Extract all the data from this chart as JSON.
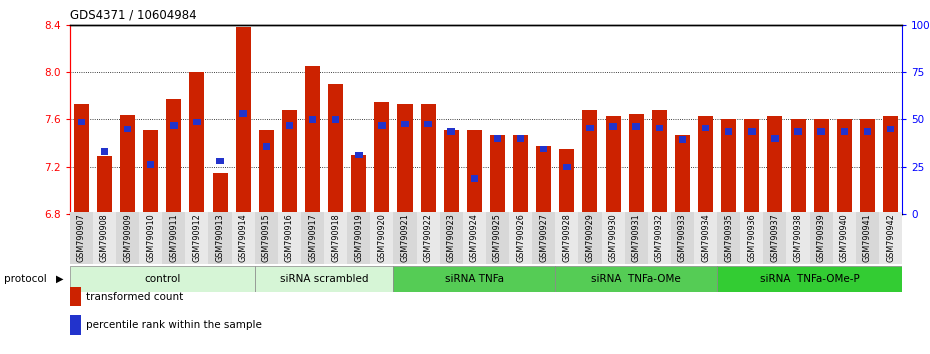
{
  "title": "GDS4371 / 10604984",
  "samples": [
    "GSM790907",
    "GSM790908",
    "GSM790909",
    "GSM790910",
    "GSM790911",
    "GSM790912",
    "GSM790913",
    "GSM790914",
    "GSM790915",
    "GSM790916",
    "GSM790917",
    "GSM790918",
    "GSM790919",
    "GSM790920",
    "GSM790921",
    "GSM790922",
    "GSM790923",
    "GSM790924",
    "GSM790925",
    "GSM790926",
    "GSM790927",
    "GSM790928",
    "GSM790929",
    "GSM790930",
    "GSM790931",
    "GSM790932",
    "GSM790933",
    "GSM790934",
    "GSM790935",
    "GSM790936",
    "GSM790937",
    "GSM790938",
    "GSM790939",
    "GSM790940",
    "GSM790941",
    "GSM790942"
  ],
  "red_values": [
    7.73,
    7.29,
    7.64,
    7.51,
    7.77,
    8.0,
    7.15,
    8.38,
    7.51,
    7.68,
    8.05,
    7.9,
    7.3,
    7.75,
    7.73,
    7.73,
    7.51,
    7.51,
    7.47,
    7.47,
    7.38,
    7.35,
    7.68,
    7.63,
    7.65,
    7.68,
    7.47,
    7.63,
    7.6,
    7.6,
    7.63,
    7.6,
    7.6,
    7.6,
    7.6,
    7.63
  ],
  "blue_values": [
    7.58,
    7.33,
    7.52,
    7.22,
    7.55,
    7.58,
    7.25,
    7.65,
    7.37,
    7.55,
    7.6,
    7.6,
    7.3,
    7.55,
    7.56,
    7.56,
    7.5,
    7.1,
    7.44,
    7.44,
    7.35,
    7.2,
    7.53,
    7.54,
    7.54,
    7.53,
    7.43,
    7.53,
    7.5,
    7.5,
    7.44,
    7.5,
    7.5,
    7.5,
    7.5,
    7.52
  ],
  "groups": [
    {
      "label": "control",
      "start": 0,
      "end": 8,
      "color": "#d6f5d6"
    },
    {
      "label": "siRNA scrambled",
      "start": 8,
      "end": 14,
      "color": "#d6f5d6"
    },
    {
      "label": "siRNA TNFa",
      "start": 14,
      "end": 21,
      "color": "#44cc44"
    },
    {
      "label": "siRNA  TNFa-OMe",
      "start": 21,
      "end": 28,
      "color": "#44cc44"
    },
    {
      "label": "siRNA  TNFa-OMe-P",
      "start": 28,
      "end": 36,
      "color": "#44cc44"
    }
  ],
  "group_colors": [
    "#d6f5d6",
    "#d6f5d6",
    "#55cc55",
    "#55cc55",
    "#33cc33"
  ],
  "y_min": 6.8,
  "y_max": 8.4,
  "y_ticks": [
    6.8,
    7.2,
    7.6,
    8.0,
    8.4
  ],
  "right_y_ticks": [
    0,
    25,
    50,
    75,
    100
  ],
  "right_y_labels": [
    "0",
    "25",
    "50",
    "75",
    "100%"
  ],
  "bar_color": "#cc2200",
  "blue_color": "#2233cc"
}
